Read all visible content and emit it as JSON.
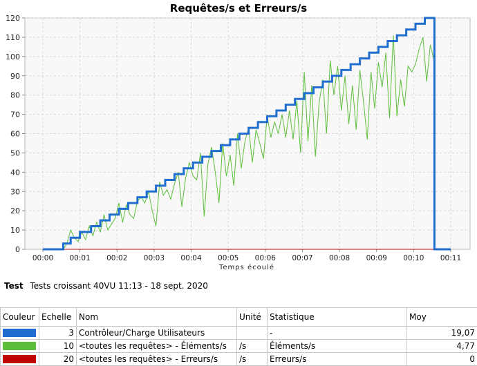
{
  "chart_data": {
    "type": "line",
    "title": "Requêtes/s et Erreurs/s",
    "xlabel": "Temps écoulé",
    "ylabel": "",
    "x_ticks": [
      "00:00",
      "00:01",
      "00:02",
      "00:03",
      "00:04",
      "00:05",
      "00:06",
      "00:07",
      "00:08",
      "00:09",
      "00:10",
      "00:11"
    ],
    "y_ticks": [
      0,
      10,
      20,
      30,
      40,
      50,
      60,
      70,
      80,
      90,
      100,
      110,
      120
    ],
    "xlim_minutes": [
      0,
      11
    ],
    "ylim": [
      0,
      120
    ],
    "grid": true,
    "series": [
      {
        "name": "Contrôleur/Charge Utilisateurs",
        "color": "#1f6ecf",
        "style": "step",
        "x_minutes": [
          0.0,
          0.55,
          0.75,
          1.0,
          1.3,
          1.55,
          1.8,
          2.05,
          2.3,
          2.55,
          2.8,
          3.05,
          3.3,
          3.55,
          3.8,
          4.05,
          4.3,
          4.55,
          4.8,
          5.05,
          5.3,
          5.55,
          5.8,
          6.05,
          6.3,
          6.55,
          6.8,
          7.05,
          7.3,
          7.55,
          7.8,
          8.05,
          8.3,
          8.55,
          8.8,
          9.05,
          9.3,
          9.55,
          9.8,
          10.05,
          10.3,
          10.55,
          10.56,
          11.0
        ],
        "y": [
          0,
          3,
          6,
          9,
          12,
          15,
          18,
          21,
          24,
          27,
          30,
          33,
          36,
          39,
          42,
          45,
          48,
          51,
          54,
          57,
          60,
          63,
          66,
          69,
          72,
          75,
          78,
          81,
          84,
          87,
          90,
          93,
          96,
          99,
          102,
          105,
          108,
          111,
          114,
          117,
          120,
          120,
          0,
          0
        ]
      },
      {
        "name": "<toutes les requêtes> - Éléments/s",
        "color": "#5cbf3a",
        "style": "line",
        "x_minutes": [
          0.55,
          0.65,
          0.75,
          0.85,
          0.95,
          1.05,
          1.15,
          1.25,
          1.35,
          1.45,
          1.55,
          1.65,
          1.75,
          1.85,
          1.95,
          2.05,
          2.15,
          2.25,
          2.35,
          2.45,
          2.55,
          2.65,
          2.75,
          2.85,
          2.95,
          3.05,
          3.15,
          3.25,
          3.35,
          3.45,
          3.55,
          3.65,
          3.75,
          3.85,
          3.95,
          4.05,
          4.15,
          4.25,
          4.35,
          4.45,
          4.55,
          4.65,
          4.75,
          4.85,
          4.95,
          5.05,
          5.15,
          5.25,
          5.35,
          5.45,
          5.55,
          5.65,
          5.75,
          5.85,
          5.95,
          6.05,
          6.15,
          6.25,
          6.35,
          6.45,
          6.55,
          6.65,
          6.75,
          6.85,
          6.95,
          7.05,
          7.15,
          7.25,
          7.35,
          7.45,
          7.55,
          7.65,
          7.75,
          7.85,
          7.95,
          8.05,
          8.15,
          8.25,
          8.35,
          8.45,
          8.55,
          8.65,
          8.75,
          8.85,
          8.95,
          9.05,
          9.15,
          9.25,
          9.35,
          9.45,
          9.55,
          9.65,
          9.75,
          9.85,
          9.95,
          10.05,
          10.15,
          10.25,
          10.35,
          10.45,
          10.55
        ],
        "y": [
          0,
          3,
          10,
          6,
          4,
          9,
          5,
          12,
          7,
          14,
          9,
          18,
          10,
          13,
          16,
          24,
          14,
          23,
          18,
          16,
          25,
          27,
          24,
          30,
          20,
          12,
          35,
          28,
          31,
          26,
          34,
          40,
          22,
          37,
          45,
          38,
          36,
          50,
          17,
          44,
          53,
          40,
          24,
          55,
          38,
          49,
          33,
          60,
          42,
          56,
          63,
          45,
          62,
          55,
          47,
          69,
          58,
          66,
          60,
          70,
          58,
          72,
          57,
          77,
          50,
          92,
          56,
          85,
          48,
          76,
          88,
          60,
          98,
          80,
          95,
          72,
          90,
          65,
          85,
          62,
          93,
          76,
          57,
          92,
          73,
          97,
          84,
          102,
          68,
          111,
          69,
          88,
          74,
          95,
          92,
          96,
          104,
          110,
          87,
          106,
          98
        ],
        "peaks_note": ""
      },
      {
        "name": "<toutes les requêtes> - Erreurs/s",
        "color": "#c00000",
        "style": "line",
        "x_minutes": [
          0.55,
          10.55
        ],
        "y": [
          0,
          0
        ]
      }
    ]
  },
  "test_info": {
    "label": "Test",
    "value": "Tests croissant 40VU 11:13 - 18 sept. 2020"
  },
  "legend_table": {
    "headers": [
      "Couleur",
      "Echelle",
      "Nom",
      "Unité",
      "Statistique",
      "Moy"
    ],
    "rows": [
      {
        "color": "#1f6ecf",
        "scale": "3",
        "name": "Contrôleur/Charge Utilisateurs",
        "unit": "",
        "stat": "-",
        "avg": "19,07"
      },
      {
        "color": "#5cbf3a",
        "scale": "10",
        "name": "<toutes les requêtes> - Éléments/s",
        "unit": "/s",
        "stat": "Éléments/s",
        "avg": "4,77"
      },
      {
        "color": "#c00000",
        "scale": "20",
        "name": "<toutes les requêtes> - Erreurs/s",
        "unit": "/s",
        "stat": "Erreurs/s",
        "avg": "0"
      }
    ]
  }
}
